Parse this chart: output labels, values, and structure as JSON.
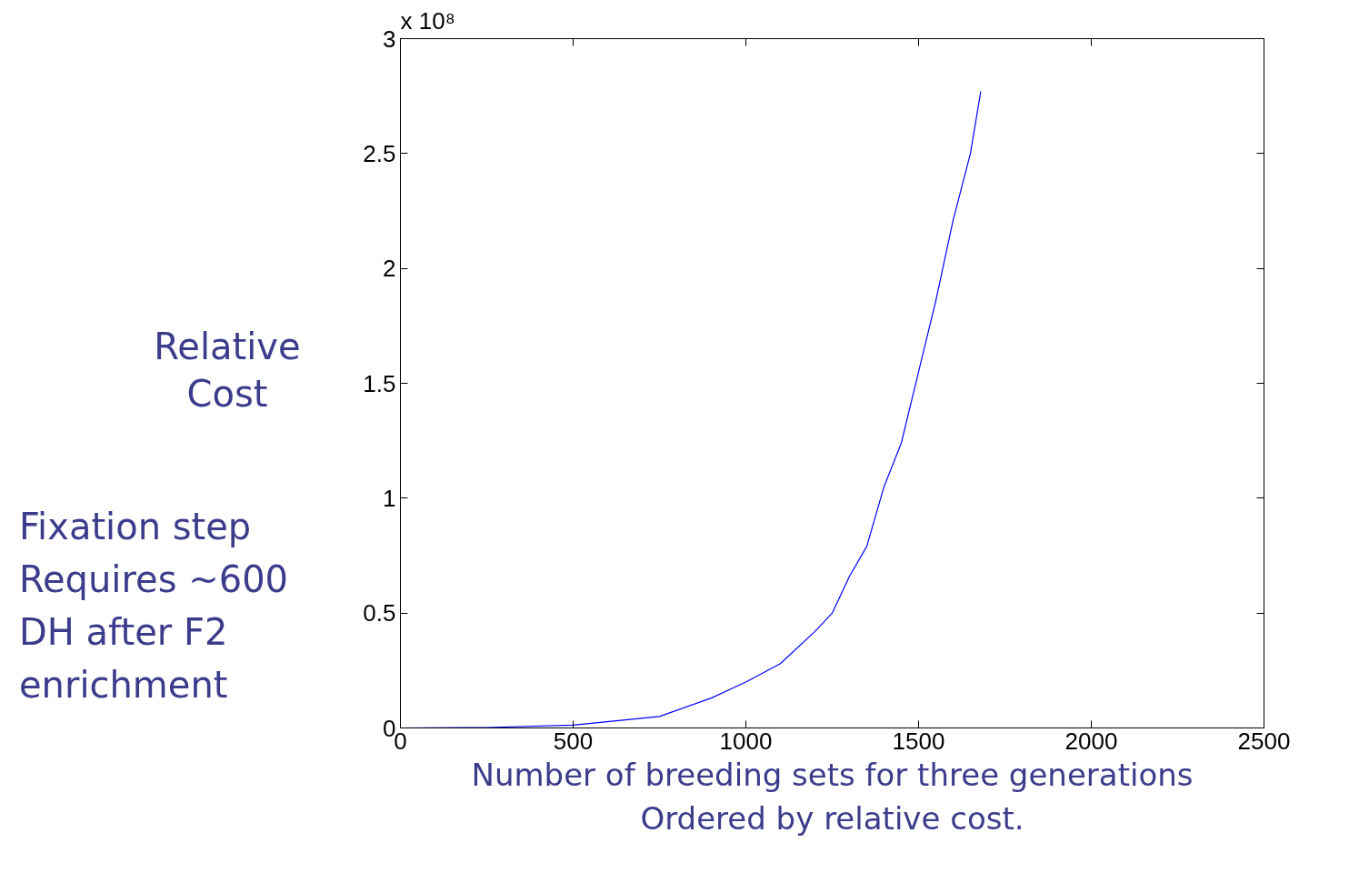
{
  "chart_data": {
    "type": "line",
    "ylabel": "Relative Cost",
    "xlabel": "Number of breeding sets for three generations\nOrdered by relative cost.",
    "annotations": [
      "x 10⁸",
      "Fixation step\nRequires ~600\nDH after F2\nenrichment"
    ],
    "x": [
      0,
      250,
      500,
      750,
      900,
      1000,
      1100,
      1200,
      1250,
      1300,
      1350,
      1400,
      1450,
      1500,
      1550,
      1600,
      1650,
      1680
    ],
    "series": [
      {
        "color": "#0000ff",
        "values": [
          0,
          0.002,
          0.012,
          0.05,
          0.13,
          0.2,
          0.28,
          0.42,
          0.5,
          0.66,
          0.79,
          1.05,
          1.24,
          1.55,
          1.86,
          2.21,
          2.5,
          2.77
        ]
      }
    ],
    "xlim": [
      0,
      2500
    ],
    "ylim": [
      0,
      3
    ],
    "xticks": [
      0,
      500,
      1000,
      1500,
      2000,
      2500
    ],
    "yticks": [
      0,
      0.5,
      1,
      1.5,
      2,
      2.5,
      3
    ],
    "grid": false,
    "marker": "none",
    "line_style": "solid"
  }
}
